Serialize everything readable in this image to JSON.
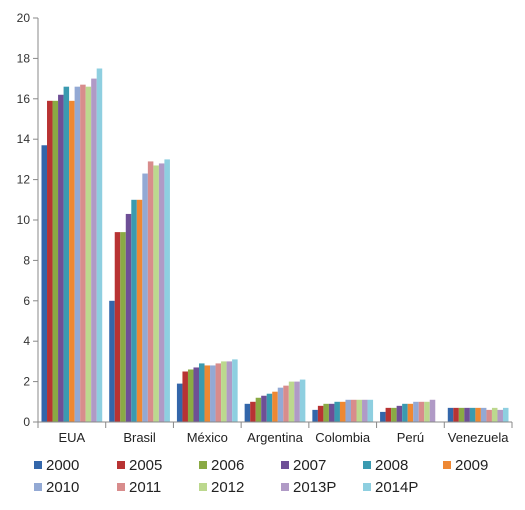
{
  "chart_data": {
    "type": "bar",
    "title": "",
    "xlabel": "",
    "ylabel": "",
    "ylim": [
      0,
      20
    ],
    "yticks": [
      0,
      2,
      4,
      6,
      8,
      10,
      12,
      14,
      16,
      18,
      20
    ],
    "grid": false,
    "legend_position": "bottom",
    "categories": [
      "EUA",
      "Brasil",
      "México",
      "Argentina",
      "Colombia",
      "Perú",
      "Venezuela"
    ],
    "series": [
      {
        "name": "2000",
        "color": "#3366aa",
        "values": [
          13.7,
          6.0,
          1.9,
          0.9,
          0.6,
          0.5,
          0.7
        ]
      },
      {
        "name": "2005",
        "color": "#b83333",
        "values": [
          15.9,
          9.4,
          2.5,
          1.0,
          0.8,
          0.7,
          0.7
        ]
      },
      {
        "name": "2006",
        "color": "#8aaa44",
        "values": [
          15.9,
          9.4,
          2.6,
          1.2,
          0.9,
          0.7,
          0.7
        ]
      },
      {
        "name": "2007",
        "color": "#6e4f96",
        "values": [
          16.2,
          10.3,
          2.7,
          1.3,
          0.9,
          0.8,
          0.7
        ]
      },
      {
        "name": "2008",
        "color": "#3a9ab0",
        "values": [
          16.6,
          11.0,
          2.9,
          1.4,
          1.0,
          0.9,
          0.7
        ]
      },
      {
        "name": "2009",
        "color": "#ee8833",
        "values": [
          15.9,
          11.0,
          2.8,
          1.5,
          1.0,
          0.9,
          0.7
        ]
      },
      {
        "name": "2010",
        "color": "#93a9d4",
        "values": [
          16.6,
          12.3,
          2.8,
          1.7,
          1.1,
          1.0,
          0.7
        ]
      },
      {
        "name": "2011",
        "color": "#d88c8c",
        "values": [
          16.7,
          12.9,
          2.9,
          1.8,
          1.1,
          1.0,
          0.6
        ]
      },
      {
        "name": "2012",
        "color": "#bcd88e",
        "values": [
          16.6,
          12.7,
          3.0,
          2.0,
          1.1,
          1.0,
          0.7
        ]
      },
      {
        "name": "2013P",
        "color": "#b09ac6",
        "values": [
          17.0,
          12.8,
          3.0,
          2.0,
          1.1,
          1.1,
          0.6
        ]
      },
      {
        "name": "2014P",
        "color": "#8ecfe0",
        "values": [
          17.5,
          13.0,
          3.1,
          2.1,
          1.1,
          null,
          0.7
        ]
      }
    ]
  }
}
